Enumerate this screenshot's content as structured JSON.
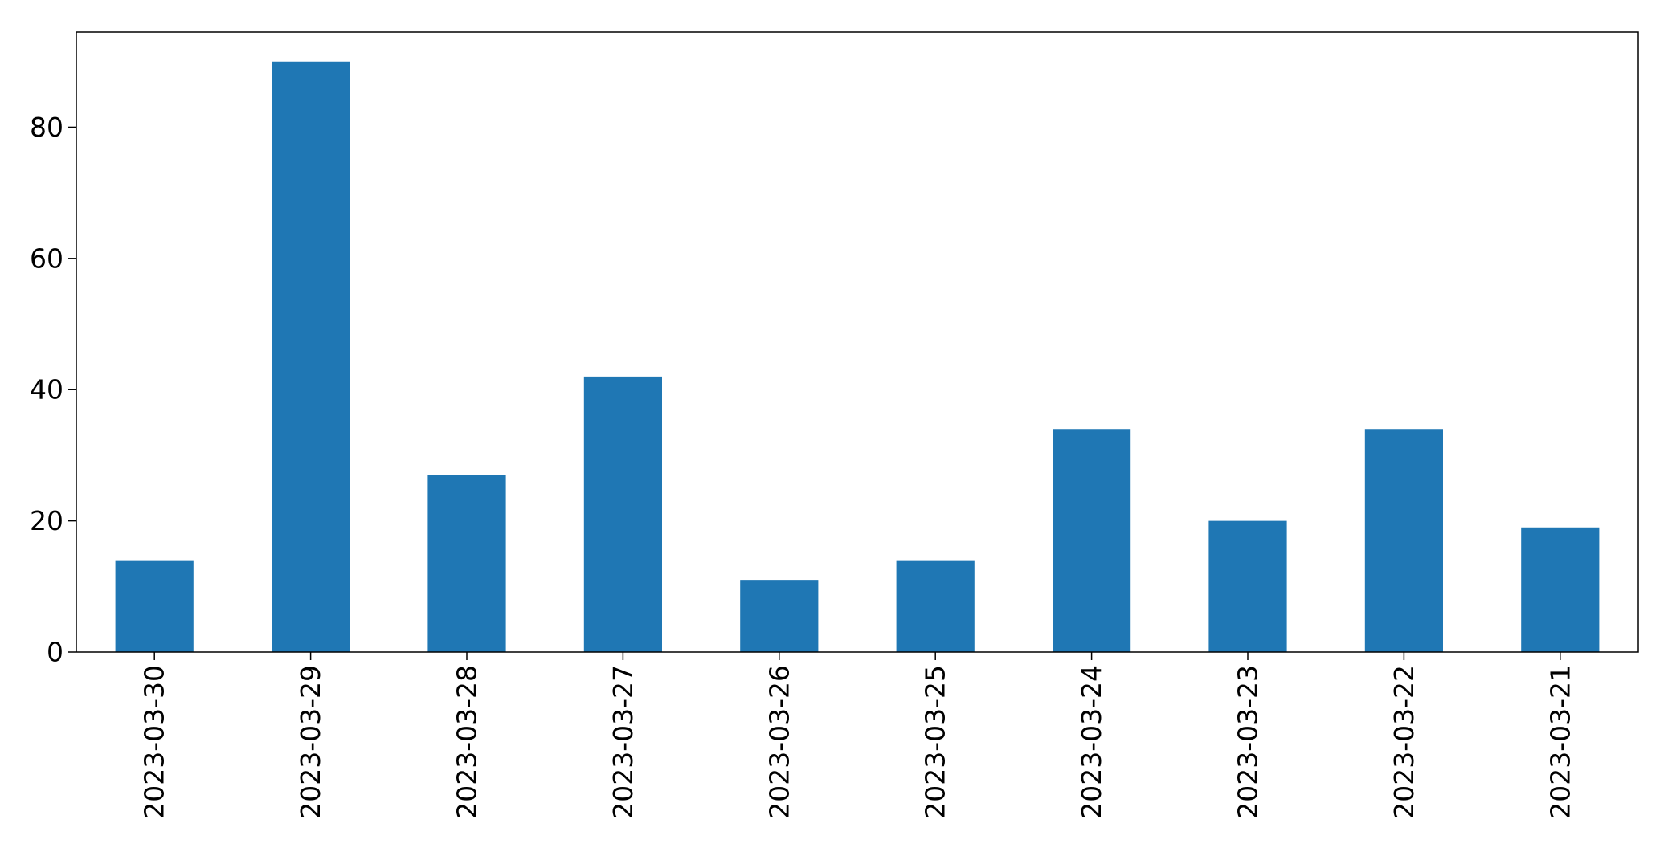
{
  "chart_data": {
    "type": "bar",
    "categories": [
      "2023-03-30",
      "2023-03-29",
      "2023-03-28",
      "2023-03-27",
      "2023-03-26",
      "2023-03-25",
      "2023-03-24",
      "2023-03-23",
      "2023-03-22",
      "2023-03-21"
    ],
    "values": [
      14,
      90,
      27,
      42,
      11,
      14,
      34,
      20,
      34,
      19
    ],
    "ylim": [
      0,
      94.5
    ],
    "yticks": [
      0,
      20,
      40,
      60,
      80
    ],
    "ytick_labels": [
      "0",
      "20",
      "40",
      "60",
      "80"
    ],
    "grid": false,
    "bar_color": "#1f77b4"
  }
}
